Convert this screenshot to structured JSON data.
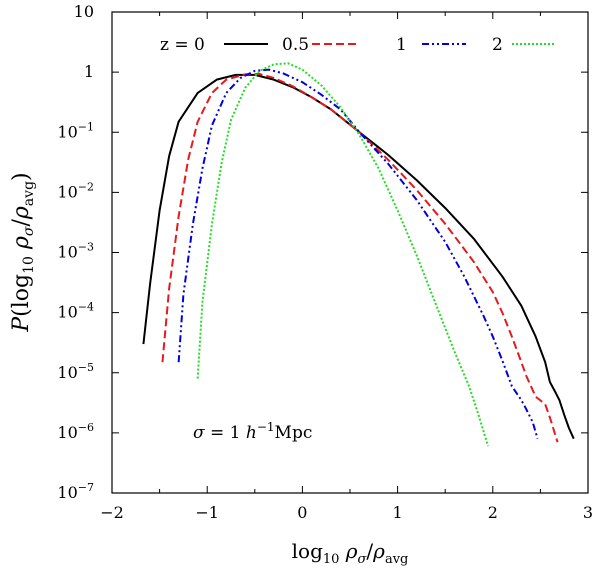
{
  "chart_data": {
    "type": "line",
    "xlabel": "log10 ρσ/ρavg",
    "ylabel": "P(log10 ρσ/ρavg)",
    "xlim": [
      -2,
      3
    ],
    "ylim": [
      1e-07,
      10
    ],
    "ylog": true,
    "grid": false,
    "legend_position": "top",
    "x_ticks": [
      "−2",
      "−1",
      "0",
      "1",
      "2",
      "3"
    ],
    "y_ticks": [
      "10",
      "1",
      "10−1",
      "10−2",
      "10−3",
      "10−4",
      "10−5",
      "10−6",
      "10−7"
    ],
    "legend_title": "z = 0",
    "annotation": "σ = 1 h−1Mpc",
    "series": [
      {
        "name": "0",
        "color": "#000000",
        "style": "solid",
        "points": [
          [
            -1.67,
            3e-05
          ],
          [
            -1.6,
            0.0003
          ],
          [
            -1.5,
            0.005
          ],
          [
            -1.4,
            0.04
          ],
          [
            -1.3,
            0.15
          ],
          [
            -1.1,
            0.45
          ],
          [
            -0.9,
            0.75
          ],
          [
            -0.7,
            0.9
          ],
          [
            -0.5,
            0.9
          ],
          [
            -0.3,
            0.75
          ],
          [
            -0.1,
            0.56
          ],
          [
            0.1,
            0.38
          ],
          [
            0.3,
            0.24
          ],
          [
            0.6,
            0.1
          ],
          [
            0.9,
            0.042
          ],
          [
            1.2,
            0.016
          ],
          [
            1.5,
            0.0055
          ],
          [
            1.8,
            0.0017
          ],
          [
            2.1,
            0.0004
          ],
          [
            2.3,
            0.00013
          ],
          [
            2.45,
            4e-05
          ],
          [
            2.55,
            1.5e-05
          ],
          [
            2.6,
            7e-06
          ],
          [
            2.65,
            5e-06
          ],
          [
            2.7,
            3.5e-06
          ],
          [
            2.75,
            2e-06
          ],
          [
            2.8,
            1.2e-06
          ],
          [
            2.85,
            8e-07
          ]
        ]
      },
      {
        "name": "0.5",
        "color": "#e41a1c",
        "style": "dashed",
        "points": [
          [
            -1.47,
            1.5e-05
          ],
          [
            -1.4,
            0.00025
          ],
          [
            -1.3,
            0.004
          ],
          [
            -1.2,
            0.035
          ],
          [
            -1.1,
            0.15
          ],
          [
            -0.95,
            0.45
          ],
          [
            -0.8,
            0.75
          ],
          [
            -0.6,
            0.92
          ],
          [
            -0.45,
            0.93
          ],
          [
            -0.3,
            0.8
          ],
          [
            -0.1,
            0.58
          ],
          [
            0.1,
            0.38
          ],
          [
            0.3,
            0.24
          ],
          [
            0.6,
            0.1
          ],
          [
            0.9,
            0.035
          ],
          [
            1.2,
            0.011
          ],
          [
            1.5,
            0.003
          ],
          [
            1.8,
            0.0007
          ],
          [
            2.0,
            0.00022
          ],
          [
            2.1,
            0.0001
          ],
          [
            2.2,
            4e-05
          ],
          [
            2.3,
            1.5e-05
          ],
          [
            2.35,
            9e-06
          ],
          [
            2.45,
            4e-06
          ],
          [
            2.55,
            3e-06
          ],
          [
            2.6,
            1.8e-06
          ],
          [
            2.68,
            7e-07
          ]
        ]
      },
      {
        "name": "1",
        "color": "#0000dd",
        "style": "dashdotdot",
        "points": [
          [
            -1.3,
            1.5e-05
          ],
          [
            -1.25,
            0.0002
          ],
          [
            -1.15,
            0.003
          ],
          [
            -1.05,
            0.025
          ],
          [
            -0.95,
            0.13
          ],
          [
            -0.8,
            0.45
          ],
          [
            -0.65,
            0.8
          ],
          [
            -0.5,
            1.05
          ],
          [
            -0.35,
            1.1
          ],
          [
            -0.2,
            0.95
          ],
          [
            0.0,
            0.68
          ],
          [
            0.2,
            0.42
          ],
          [
            0.4,
            0.24
          ],
          [
            0.6,
            0.1
          ],
          [
            0.9,
            0.03
          ],
          [
            1.2,
            0.0075
          ],
          [
            1.5,
            0.0015
          ],
          [
            1.7,
            0.0004
          ],
          [
            1.9,
            9e-05
          ],
          [
            2.0,
            4e-05
          ],
          [
            2.1,
            1.6e-05
          ],
          [
            2.2,
            6e-06
          ],
          [
            2.3,
            3.5e-06
          ],
          [
            2.35,
            2.5e-06
          ],
          [
            2.42,
            1.5e-06
          ],
          [
            2.47,
            8e-07
          ]
        ]
      },
      {
        "name": "2",
        "color": "#22dd22",
        "style": "dotted",
        "points": [
          [
            -1.1,
            8e-06
          ],
          [
            -1.05,
            0.00015
          ],
          [
            -0.95,
            0.003
          ],
          [
            -0.85,
            0.03
          ],
          [
            -0.75,
            0.16
          ],
          [
            -0.6,
            0.55
          ],
          [
            -0.45,
            1.05
          ],
          [
            -0.3,
            1.35
          ],
          [
            -0.15,
            1.4
          ],
          [
            0.0,
            1.1
          ],
          [
            0.2,
            0.6
          ],
          [
            0.4,
            0.26
          ],
          [
            0.6,
            0.09
          ],
          [
            0.8,
            0.025
          ],
          [
            1.0,
            0.005
          ],
          [
            1.2,
            0.0009
          ],
          [
            1.4,
            0.00014
          ],
          [
            1.6,
            2.2e-05
          ],
          [
            1.75,
            6e-06
          ],
          [
            1.85,
            2e-06
          ],
          [
            1.95,
            6e-07
          ]
        ]
      }
    ]
  }
}
